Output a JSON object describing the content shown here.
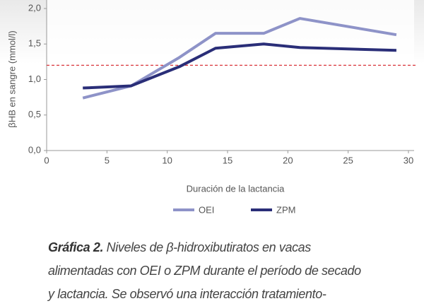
{
  "chart_data": {
    "type": "line",
    "y_label": "βHB en sangre (mmol/l)",
    "x_label": "Duración de la lactancia",
    "xlim": [
      0,
      30
    ],
    "xticks": [
      0,
      5,
      10,
      15,
      20,
      25,
      30
    ],
    "ylim": [
      0,
      2
    ],
    "yticks": [
      {
        "value": 0,
        "label": "0,0"
      },
      {
        "value": 0.5,
        "label": "0,5"
      },
      {
        "value": 1,
        "label": "1,0"
      },
      {
        "value": 1.5,
        "label": "1,5"
      },
      {
        "value": 2,
        "label": "2,0"
      }
    ],
    "threshold": 1.2,
    "threshold_color": "#d9343a",
    "series": [
      {
        "name": "OEI",
        "color": "#8e93c8",
        "x": [
          3,
          7,
          11,
          14,
          18,
          21,
          29
        ],
        "values": [
          0.74,
          0.91,
          1.31,
          1.65,
          1.65,
          1.86,
          1.63
        ]
      },
      {
        "name": "ZPM",
        "color": "#2a2e78",
        "x": [
          3,
          7,
          11,
          14,
          18,
          21,
          29
        ],
        "values": [
          0.88,
          0.91,
          1.18,
          1.44,
          1.5,
          1.45,
          1.41
        ]
      }
    ]
  },
  "caption": {
    "label": "Gráfica 2.",
    "lines": [
      "Niveles de β-hidroxibutiratos en vacas",
      "alimentadas con OEI o ZPM durante el período de secado",
      "y lactancia. Se observó una interacción tratamiento-"
    ]
  }
}
